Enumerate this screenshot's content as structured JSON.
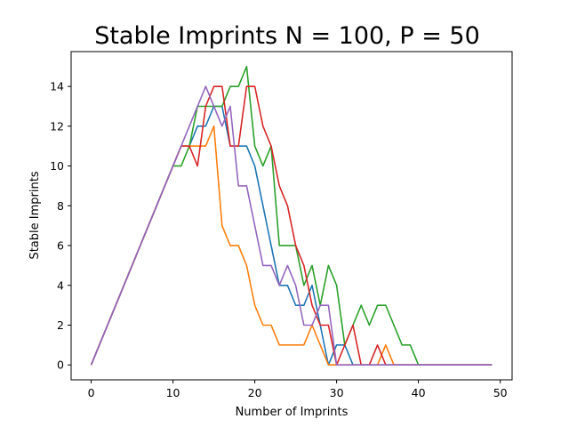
{
  "chart_data": {
    "type": "line",
    "title": "Stable Imprints N = 100, P = 50",
    "xlabel": "Number of Imprints",
    "ylabel": "Stable Imprints",
    "xlim": [
      -2.45,
      51.45
    ],
    "ylim": [
      -0.75,
      15.75
    ],
    "xticks": [
      0,
      10,
      20,
      30,
      40,
      50
    ],
    "yticks": [
      0,
      2,
      4,
      6,
      8,
      10,
      12,
      14
    ],
    "grid": false,
    "legend": "none",
    "x": [
      0,
      1,
      2,
      3,
      4,
      5,
      6,
      7,
      8,
      9,
      10,
      11,
      12,
      13,
      14,
      15,
      16,
      17,
      18,
      19,
      20,
      21,
      22,
      23,
      24,
      25,
      26,
      27,
      28,
      29,
      30,
      31,
      32,
      33,
      34,
      35,
      36,
      37,
      38,
      39,
      40,
      41,
      42,
      43,
      44,
      45,
      46,
      47,
      48,
      49
    ],
    "series": [
      {
        "color": "#1f77b4",
        "values": [
          0,
          1,
          2,
          3,
          4,
          5,
          6,
          7,
          8,
          9,
          10,
          11,
          11,
          12,
          12,
          13,
          13,
          11,
          11,
          11,
          10,
          8,
          6,
          4,
          4,
          3,
          3,
          4,
          2,
          0,
          1,
          1,
          0,
          0,
          0,
          0,
          0,
          0,
          0,
          0,
          0,
          0,
          0,
          0,
          0,
          0,
          0,
          0,
          0,
          0
        ]
      },
      {
        "color": "#ff7f0e",
        "values": [
          0,
          1,
          2,
          3,
          4,
          5,
          6,
          7,
          8,
          9,
          10,
          11,
          11,
          11,
          11,
          12,
          7,
          6,
          6,
          5,
          3,
          2,
          2,
          1,
          1,
          1,
          1,
          2,
          1,
          0,
          0,
          0,
          0,
          0,
          0,
          0,
          1,
          0,
          0,
          0,
          0,
          0,
          0,
          0,
          0,
          0,
          0,
          0,
          0,
          0
        ]
      },
      {
        "color": "#2ca02c",
        "values": [
          0,
          1,
          2,
          3,
          4,
          5,
          6,
          7,
          8,
          9,
          10,
          10,
          11,
          13,
          13,
          13,
          13,
          14,
          14,
          15,
          11,
          10,
          11,
          6,
          6,
          6,
          4,
          5,
          3,
          5,
          4,
          1,
          2,
          3,
          2,
          3,
          3,
          2,
          1,
          1,
          0,
          0,
          0,
          0,
          0,
          0,
          0,
          0,
          0,
          0
        ]
      },
      {
        "color": "#d62728",
        "values": [
          0,
          1,
          2,
          3,
          4,
          5,
          6,
          7,
          8,
          9,
          10,
          11,
          11,
          10,
          13,
          14,
          14,
          11,
          11,
          14,
          14,
          12,
          11,
          9,
          8,
          6,
          5,
          3,
          2,
          2,
          0,
          1,
          2,
          0,
          0,
          1,
          0,
          0,
          0,
          0,
          0,
          0,
          0,
          0,
          0,
          0,
          0,
          0,
          0,
          0
        ]
      },
      {
        "color": "#9467bd",
        "values": [
          0,
          1,
          2,
          3,
          4,
          5,
          6,
          7,
          8,
          9,
          10,
          11,
          12,
          13,
          14,
          13,
          12,
          13,
          9,
          9,
          7,
          5,
          5,
          4,
          5,
          4,
          2,
          2,
          3,
          3,
          0,
          0,
          0,
          0,
          0,
          0,
          0,
          0,
          0,
          0,
          0,
          0,
          0,
          0,
          0,
          0,
          0,
          0,
          0,
          0
        ]
      }
    ]
  }
}
